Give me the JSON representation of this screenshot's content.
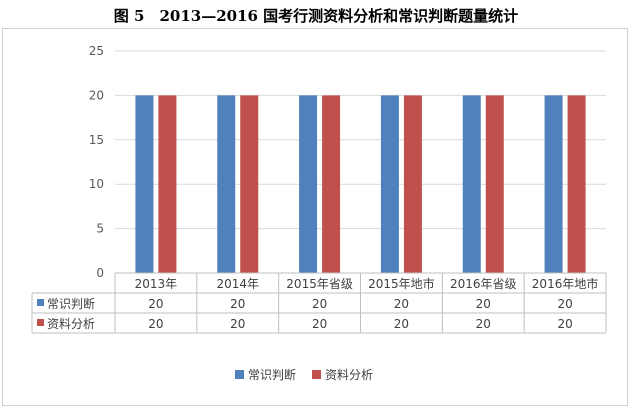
{
  "chart_data": {
    "type": "bar",
    "title": "图 5　2013—2016 国考行测资料分析和常识判断题量统计",
    "categories": [
      "2013年",
      "2014年",
      "2015年省级",
      "2015年地市",
      "2016年省级",
      "2016年地市"
    ],
    "series": [
      {
        "name": "常识判断",
        "values": [
          20,
          20,
          20,
          20,
          20,
          20
        ],
        "color": "#4f81bd"
      },
      {
        "name": "资料分析",
        "values": [
          20,
          20,
          20,
          20,
          20,
          20
        ],
        "color": "#c0504d"
      }
    ],
    "ylim": [
      0,
      25
    ],
    "yticks": [
      0,
      5,
      10,
      15,
      20,
      25
    ],
    "grid": true,
    "data_table": true,
    "legend": "bottom"
  }
}
